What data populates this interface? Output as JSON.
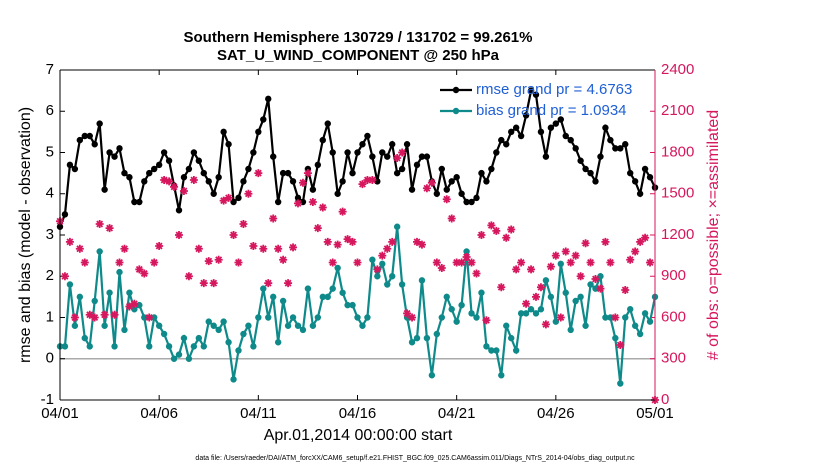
{
  "chart_data": {
    "type": "line",
    "title": "Southern Hemisphere 130729 / 131702 = 99.261%",
    "subtitle": "SAT_U_WIND_COMPONENT @ 250 hPa",
    "xlabel": "Apr.01,2014 00:00:00 start",
    "ylabel": "rmse and bias (model - observation)",
    "y2label": "# of obs: o=possible; ×=assimilated",
    "footnote": "data file: /Users/raeder/DAI/ATM_forcXX/CAM6_setup/f.e21.FHIST_BGC.f09_025.CAM6assim.011/Diags_NTrS_2014-04/obs_diag_output.nc",
    "xlim": [
      0,
      30
    ],
    "xticks": [
      {
        "value": 0,
        "label": "04/01"
      },
      {
        "value": 5,
        "label": "04/06"
      },
      {
        "value": 10,
        "label": "04/11"
      },
      {
        "value": 15,
        "label": "04/16"
      },
      {
        "value": 20,
        "label": "04/21"
      },
      {
        "value": 25,
        "label": "04/26"
      },
      {
        "value": 30,
        "label": "05/01"
      }
    ],
    "ylim": [
      -1,
      7
    ],
    "yticks": [
      -1,
      0,
      1,
      2,
      3,
      4,
      5,
      6,
      7
    ],
    "y2lim": [
      0,
      2400
    ],
    "y2ticks": [
      0,
      300,
      600,
      900,
      1200,
      1500,
      1800,
      2100,
      2400
    ],
    "hline": 0,
    "legend": "upper right",
    "x": [
      0,
      0.25,
      0.5,
      0.75,
      1,
      1.25,
      1.5,
      1.75,
      2,
      2.25,
      2.5,
      2.75,
      3,
      3.25,
      3.5,
      3.75,
      4,
      4.25,
      4.5,
      4.75,
      5,
      5.25,
      5.5,
      5.75,
      6,
      6.25,
      6.5,
      6.75,
      7,
      7.25,
      7.5,
      7.75,
      8,
      8.25,
      8.5,
      8.75,
      9,
      9.25,
      9.5,
      9.75,
      10,
      10.25,
      10.5,
      10.75,
      11,
      11.25,
      11.5,
      11.75,
      12,
      12.25,
      12.5,
      12.75,
      13,
      13.25,
      13.5,
      13.75,
      14,
      14.25,
      14.5,
      14.75,
      15,
      15.25,
      15.5,
      15.75,
      16,
      16.25,
      16.5,
      16.75,
      17,
      17.25,
      17.5,
      17.75,
      18,
      18.25,
      18.5,
      18.75,
      19,
      19.25,
      19.5,
      19.75,
      20,
      20.25,
      20.5,
      20.75,
      21,
      21.25,
      21.5,
      21.75,
      22,
      22.25,
      22.5,
      22.75,
      23,
      23.25,
      23.5,
      23.75,
      24,
      24.25,
      24.5,
      24.75,
      25,
      25.25,
      25.5,
      25.75,
      26,
      26.25,
      26.5,
      26.75,
      27,
      27.25,
      27.5,
      27.75,
      28,
      28.25,
      28.5,
      28.75,
      29,
      29.25,
      29.5,
      29.75,
      30
    ],
    "series": [
      {
        "name": "rmse grand pr = 4.6763",
        "color": "#000000",
        "values": [
          3.2,
          3.5,
          4.7,
          4.6,
          5.3,
          5.4,
          5.4,
          5.2,
          5.7,
          4.1,
          5.0,
          4.9,
          5.1,
          4.5,
          4.4,
          3.8,
          3.8,
          4.3,
          4.5,
          4.6,
          4.7,
          5.0,
          4.8,
          4.2,
          3.6,
          4.4,
          4.6,
          5.0,
          4.8,
          4.5,
          4.3,
          4.0,
          4.4,
          5.5,
          5.2,
          3.8,
          3.9,
          4.3,
          4.6,
          5.0,
          5.5,
          5.8,
          6.3,
          4.9,
          3.8,
          4.5,
          4.5,
          4.3,
          3.9,
          3.8,
          4.6,
          4.1,
          4.7,
          5.3,
          5.7,
          5.0,
          4.0,
          4.3,
          5.0,
          4.5,
          5.0,
          5.2,
          5.4,
          4.9,
          4.3,
          5.0,
          4.9,
          5.2,
          4.5,
          4.6,
          5.2,
          4.1,
          4.7,
          4.9,
          4.9,
          4.3,
          4.0,
          4.6,
          4.1,
          4.3,
          4.4,
          4.0,
          3.8,
          3.8,
          3.9,
          4.5,
          4.3,
          4.6,
          5.0,
          5.3,
          5.2,
          5.5,
          5.6,
          5.4,
          5.9,
          6.5,
          6.4,
          5.5,
          4.9,
          5.6,
          5.7,
          5.8,
          5.4,
          5.3,
          5.1,
          4.8,
          4.6,
          4.5,
          4.3,
          4.9,
          5.6,
          5.3,
          5.1,
          5.1,
          5.2,
          4.5,
          4.3,
          4.0,
          4.6,
          4.4,
          4.15
        ]
      },
      {
        "name": "bias grand pr = 1.0934",
        "color": "#0f8a8a",
        "values": [
          0.3,
          0.3,
          1.8,
          0.8,
          1.5,
          0.5,
          0.3,
          1.4,
          2.6,
          0.8,
          1.6,
          0.3,
          2.1,
          0.7,
          1.6,
          1.2,
          1.3,
          1.0,
          0.3,
          1.0,
          0.8,
          0.6,
          0.3,
          0.0,
          0.1,
          0.5,
          0.0,
          0.3,
          0.5,
          0.3,
          0.9,
          0.8,
          0.7,
          0.9,
          0.4,
          -0.5,
          0.2,
          0.6,
          0.8,
          0.3,
          1.0,
          1.7,
          1.0,
          1.5,
          0.4,
          1.4,
          0.8,
          1.0,
          0.8,
          0.7,
          1.7,
          0.8,
          1.0,
          1.5,
          1.5,
          1.7,
          2.2,
          1.6,
          1.3,
          1.3,
          1.0,
          0.8,
          1.0,
          2.4,
          2.0,
          2.3,
          1.8,
          2.0,
          3.2,
          1.8,
          1.0,
          0.4,
          0.5,
          1.9,
          0.5,
          -0.4,
          0.6,
          1.0,
          1.5,
          1.2,
          0.9,
          1.3,
          2.6,
          1.1,
          1.0,
          1.6,
          0.3,
          0.2,
          0.2,
          -0.4,
          0.8,
          0.5,
          0.2,
          1.1,
          1.1,
          1.2,
          1.1,
          1.2,
          1.9,
          1.5,
          0.9,
          2.3,
          1.6,
          0.7,
          1.4,
          1.5,
          0.8,
          1.8,
          1.7,
          2.0,
          1.0,
          1.0,
          0.5,
          -0.6,
          1.0,
          1.2,
          0.8,
          0.6,
          1.1,
          0.9,
          1.5
        ]
      },
      {
        "type": "scatter",
        "axis": "y2",
        "color": "#d6175e",
        "values": [
          1300,
          900,
          1150,
          600,
          1100,
          1000,
          620,
          600,
          1280,
          620,
          1250,
          620,
          1000,
          1100,
          680,
          700,
          950,
          920,
          600,
          1000,
          1120,
          1600,
          1590,
          1550,
          1200,
          1520,
          900,
          1600,
          1100,
          850,
          1010,
          850,
          1020,
          1450,
          1470,
          1200,
          1000,
          1280,
          1500,
          1120,
          1650,
          1100,
          850,
          1320,
          1100,
          1020,
          850,
          1110,
          1430,
          1580,
          1650,
          1440,
          1250,
          1400,
          1150,
          1000,
          1130,
          1370,
          1170,
          1150,
          1000,
          1570,
          1600,
          1600,
          950,
          1050,
          1100,
          1150,
          1760,
          1800,
          630,
          600,
          1150,
          1130,
          1540,
          1580,
          1000,
          960,
          1460,
          1320,
          1000,
          1000,
          1040,
          1000,
          920,
          1200,
          580,
          1270,
          1230,
          820,
          1180,
          1240,
          950,
          1000,
          700,
          950,
          750,
          820,
          550,
          970,
          1050,
          600,
          1080,
          1000,
          1050,
          900,
          1140,
          1000,
          880,
          810,
          1150,
          1000,
          600,
          400,
          800,
          1020,
          1080,
          1150,
          1180,
          1000,
          0
        ]
      }
    ]
  }
}
